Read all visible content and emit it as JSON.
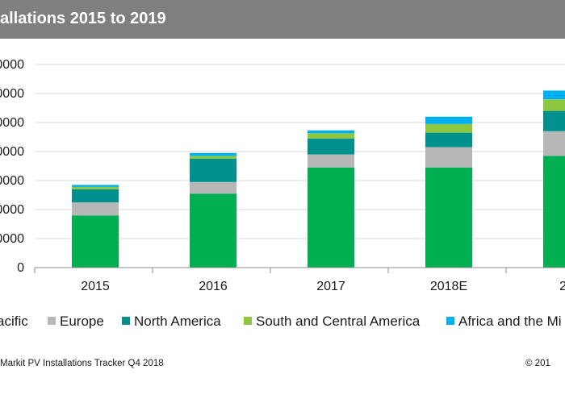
{
  "title": "allations 2015 to 2019",
  "footer": {
    "source": "Markit PV Installations Tracker Q4 2018",
    "copyright": "© 201"
  },
  "legend": [
    {
      "label": "acific",
      "color": "#00b050"
    },
    {
      "label": "Europe",
      "color": "#b7b7b7"
    },
    {
      "label": "North America",
      "color": "#00918f"
    },
    {
      "label": "South and Central America",
      "color": "#8dc63f"
    },
    {
      "label": "Africa and the Mi",
      "color": "#00b0f0"
    }
  ],
  "chart_data": {
    "type": "bar",
    "stacked": true,
    "categories": [
      "2015",
      "2016",
      "2017",
      "2018E",
      "20"
    ],
    "ytick_labels": [
      "0",
      "0000",
      "0000",
      "0000",
      "0000",
      "0000",
      "0000",
      "0000"
    ],
    "ytick_values": [
      0,
      1,
      2,
      3,
      4,
      5,
      6,
      7
    ],
    "ylim": [
      0,
      7
    ],
    "grid": true,
    "series": [
      {
        "values": [
          1.8,
          2.55,
          3.45,
          3.45,
          3.85
        ],
        "color": "#00b050"
      },
      {
        "values": [
          0.45,
          0.4,
          0.45,
          0.7,
          0.85
        ],
        "color": "#b7b7b7"
      },
      {
        "values": [
          0.45,
          0.8,
          0.55,
          0.5,
          0.7
        ],
        "color": "#00918f"
      },
      {
        "values": [
          0.08,
          0.1,
          0.18,
          0.3,
          0.4
        ],
        "color": "#8dc63f"
      },
      {
        "values": [
          0.07,
          0.1,
          0.1,
          0.25,
          0.3
        ],
        "color": "#00b0f0"
      }
    ]
  }
}
